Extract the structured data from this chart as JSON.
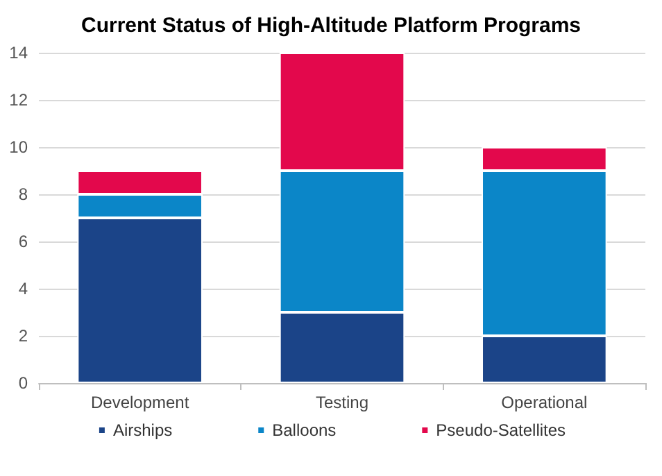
{
  "chart_data": {
    "type": "bar",
    "title": "Current Status of High-Altitude Platform Programs",
    "categories": [
      "Development",
      "Testing",
      "Operational"
    ],
    "stacked": true,
    "series": [
      {
        "name": "Airships",
        "color": "#1b4488",
        "values": [
          7,
          3,
          2
        ]
      },
      {
        "name": "Balloons",
        "color": "#0b86c8",
        "values": [
          1,
          6,
          7
        ]
      },
      {
        "name": "Pseudo-Satellites",
        "color": "#e3084c",
        "values": [
          1,
          5,
          1
        ]
      }
    ],
    "ylim": [
      0,
      14
    ],
    "yticks": [
      0,
      2,
      4,
      6,
      8,
      10,
      12,
      14
    ],
    "grid": "y",
    "legend": "bottom"
  }
}
